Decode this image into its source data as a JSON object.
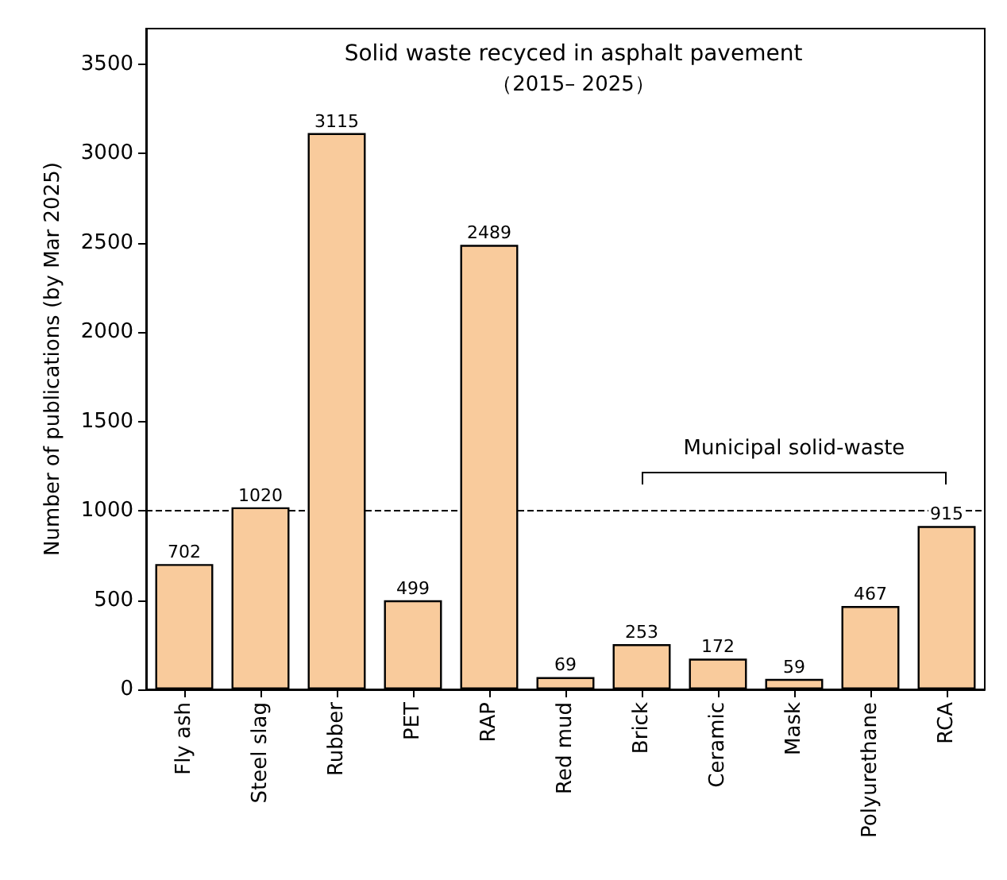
{
  "chart_data": {
    "type": "bar",
    "title": "Solid waste recyced in asphalt pavement",
    "subtitle": "（2015– 2025）",
    "ylabel": "Number of publications (by Mar 2025)",
    "categories": [
      "Fly ash",
      "Steel slag",
      "Rubber",
      "PET",
      "RAP",
      "Red mud",
      "Brick",
      "Ceramic",
      "Mask",
      "Polyurethane",
      "RCA"
    ],
    "values": [
      702,
      1020,
      3115,
      499,
      2489,
      69,
      253,
      172,
      59,
      467,
      915
    ],
    "color": "#f9cb9c",
    "ylim": [
      0,
      3700
    ],
    "yticks": [
      0,
      500,
      1000,
      1500,
      2000,
      2500,
      3000,
      3500
    ],
    "grid": false,
    "data_labels": true,
    "ref_lines": [
      {
        "axis": "y",
        "value": 1000,
        "line_style": "dashed",
        "color": "#000000"
      }
    ],
    "annotations": [
      "Municipal solid-waste"
    ]
  }
}
